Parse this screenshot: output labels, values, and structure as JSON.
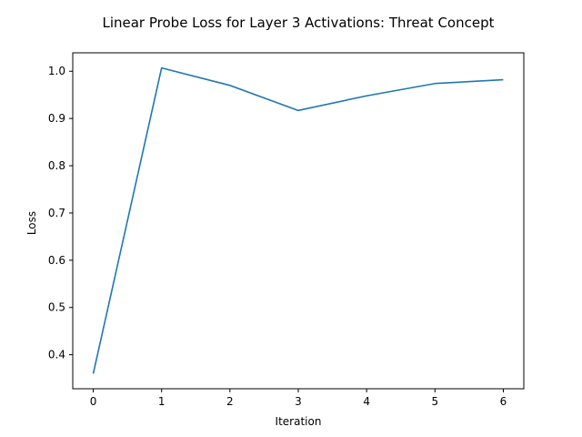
{
  "chart_data": {
    "type": "line",
    "title": "Linear Probe Loss for Layer 3 Activations: Threat Concept",
    "xlabel": "Iteration",
    "ylabel": "Loss",
    "x": [
      0,
      1,
      2,
      3,
      4,
      5,
      6
    ],
    "series": [
      {
        "values": [
          0.36,
          1.007,
          0.97,
          0.917,
          0.948,
          0.974,
          0.982
        ],
        "color": "#1f77b4"
      }
    ],
    "xlim": [
      -0.3,
      6.3
    ],
    "ylim": [
      0.328,
      1.039
    ],
    "xticks": [
      0,
      1,
      2,
      3,
      4,
      5,
      6
    ],
    "yticks": [
      0.4,
      0.5,
      0.6,
      0.7,
      0.8,
      0.9,
      1.0
    ],
    "xtick_labels": [
      "0",
      "1",
      "2",
      "3",
      "4",
      "5",
      "6"
    ],
    "ytick_labels": [
      "0.4",
      "0.5",
      "0.6",
      "0.7",
      "0.8",
      "0.9",
      "1.0"
    ],
    "grid": false,
    "legend": false
  }
}
